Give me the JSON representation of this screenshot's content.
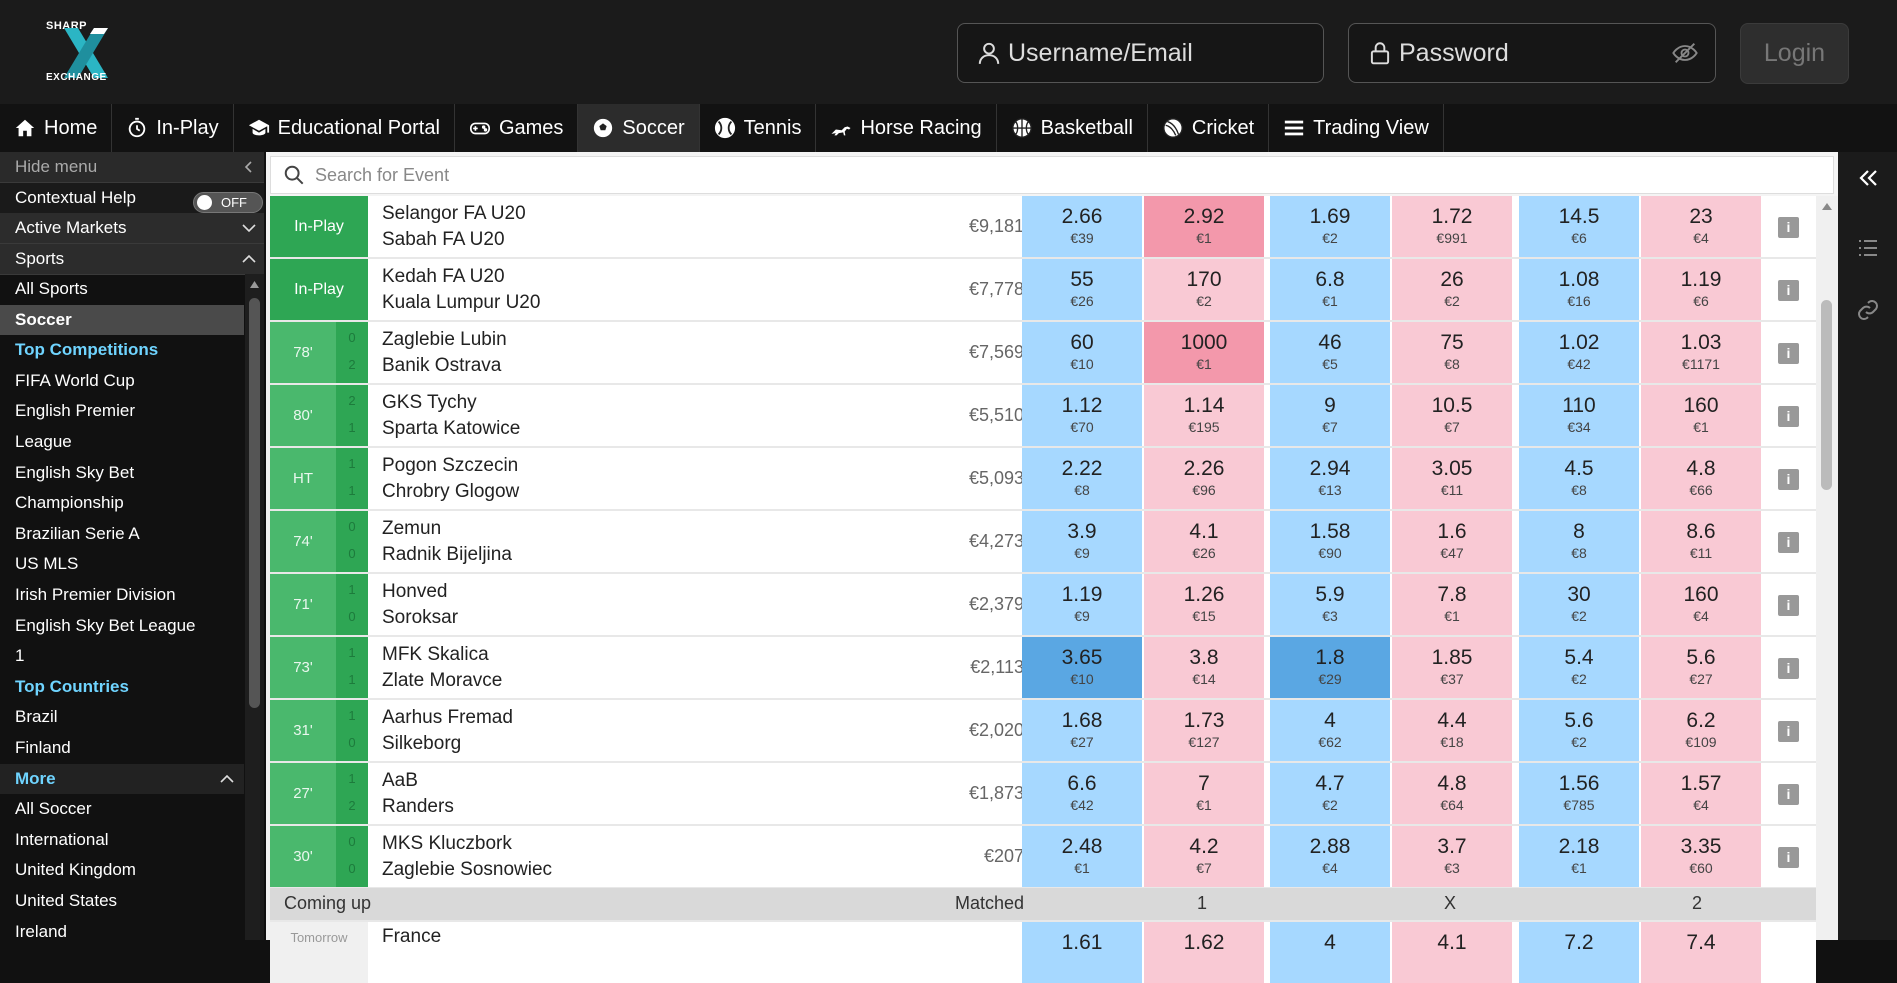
{
  "header": {
    "logo_top": "SHARP",
    "logo_bottom": "EXCHANGE",
    "username_placeholder": "Username/Email",
    "password_placeholder": "Password",
    "login_label": "Login"
  },
  "nav": [
    {
      "label": "Home",
      "icon": "home-icon"
    },
    {
      "label": "In-Play",
      "icon": "stopwatch-icon"
    },
    {
      "label": "Educational Portal",
      "icon": "graduation-cap-icon"
    },
    {
      "label": "Games",
      "icon": "gamepad-icon"
    },
    {
      "label": "Soccer",
      "icon": "soccer-ball-icon",
      "active": true
    },
    {
      "label": "Tennis",
      "icon": "tennis-ball-icon"
    },
    {
      "label": "Horse Racing",
      "icon": "horse-icon"
    },
    {
      "label": "Basketball",
      "icon": "basketball-icon"
    },
    {
      "label": "Cricket",
      "icon": "cricket-ball-icon"
    },
    {
      "label": "Trading View",
      "icon": "bars-icon"
    }
  ],
  "sidebar": {
    "hide_menu": "Hide menu",
    "contextual_help": "Contextual Help",
    "toggle_label": "OFF",
    "active_markets": "Active Markets",
    "sports": "Sports",
    "items": [
      {
        "label": "All Sports",
        "type": "item"
      },
      {
        "label": "Soccer",
        "type": "selected"
      },
      {
        "label": "Top Competitions",
        "type": "section"
      },
      {
        "label": "FIFA World Cup",
        "type": "item"
      },
      {
        "label": "English Premier",
        "type": "item"
      },
      {
        "label": "League",
        "type": "item"
      },
      {
        "label": "English Sky Bet",
        "type": "item"
      },
      {
        "label": "Championship",
        "type": "item"
      },
      {
        "label": "Brazilian Serie A",
        "type": "item"
      },
      {
        "label": "US MLS",
        "type": "item"
      },
      {
        "label": "Irish Premier Division",
        "type": "item"
      },
      {
        "label": "English Sky Bet League",
        "type": "item"
      },
      {
        "label": "1",
        "type": "item"
      },
      {
        "label": "Top Countries",
        "type": "section"
      },
      {
        "label": "Brazil",
        "type": "item"
      },
      {
        "label": "Finland",
        "type": "item"
      },
      {
        "label": "More",
        "type": "more"
      },
      {
        "label": "All Soccer",
        "type": "item"
      },
      {
        "label": "International",
        "type": "item"
      },
      {
        "label": "United Kingdom",
        "type": "item"
      },
      {
        "label": "United States",
        "type": "item"
      },
      {
        "label": "Ireland",
        "type": "item"
      }
    ]
  },
  "search": {
    "placeholder": "Search for Event"
  },
  "colors": {
    "back": "#a6d8ff",
    "back_active": "#5aa7e3",
    "lay": "#f9c9d4",
    "lay_active": "#f398ab",
    "inplay": "#2ea654"
  },
  "events": [
    {
      "status": "In-Play",
      "home": "Selangor FA U20",
      "away": "Sabah FA U20",
      "matched": "€9,181",
      "odds": [
        [
          "2.66",
          "€39"
        ],
        [
          "2.92",
          "€1"
        ],
        [
          "1.69",
          "€2"
        ],
        [
          "1.72",
          "€991"
        ],
        [
          "14.5",
          "€6"
        ],
        [
          "23",
          "€4"
        ]
      ],
      "hl": [
        1
      ]
    },
    {
      "status": "In-Play",
      "home": "Kedah FA U20",
      "away": "Kuala Lumpur U20",
      "matched": "€7,778",
      "odds": [
        [
          "55",
          "€26"
        ],
        [
          "170",
          "€2"
        ],
        [
          "6.8",
          "€1"
        ],
        [
          "26",
          "€2"
        ],
        [
          "1.08",
          "€16"
        ],
        [
          "1.19",
          "€6"
        ]
      ],
      "hl": []
    },
    {
      "status": "78'",
      "score": [
        "0",
        "2"
      ],
      "home": "Zaglebie Lubin",
      "away": "Banik Ostrava",
      "matched": "€7,569",
      "odds": [
        [
          "60",
          "€10"
        ],
        [
          "1000",
          "€1"
        ],
        [
          "46",
          "€5"
        ],
        [
          "75",
          "€8"
        ],
        [
          "1.02",
          "€42"
        ],
        [
          "1.03",
          "€1171"
        ]
      ],
      "hl": [
        1
      ]
    },
    {
      "status": "80'",
      "score": [
        "2",
        "1"
      ],
      "home": "GKS Tychy",
      "away": "Sparta Katowice",
      "matched": "€5,510",
      "odds": [
        [
          "1.12",
          "€70"
        ],
        [
          "1.14",
          "€195"
        ],
        [
          "9",
          "€7"
        ],
        [
          "10.5",
          "€7"
        ],
        [
          "110",
          "€34"
        ],
        [
          "160",
          "€1"
        ]
      ],
      "hl": []
    },
    {
      "status": "HT",
      "score": [
        "1",
        "1"
      ],
      "home": "Pogon Szczecin",
      "away": "Chrobry Glogow",
      "matched": "€5,093",
      "odds": [
        [
          "2.22",
          "€8"
        ],
        [
          "2.26",
          "€96"
        ],
        [
          "2.94",
          "€13"
        ],
        [
          "3.05",
          "€11"
        ],
        [
          "4.5",
          "€8"
        ],
        [
          "4.8",
          "€66"
        ]
      ],
      "hl": []
    },
    {
      "status": "74'",
      "score": [
        "0",
        "0"
      ],
      "home": "Zemun",
      "away": "Radnik Bijeljina",
      "matched": "€4,273",
      "odds": [
        [
          "3.9",
          "€9"
        ],
        [
          "4.1",
          "€26"
        ],
        [
          "1.58",
          "€90"
        ],
        [
          "1.6",
          "€47"
        ],
        [
          "8",
          "€8"
        ],
        [
          "8.6",
          "€11"
        ]
      ],
      "hl": []
    },
    {
      "status": "71'",
      "score": [
        "1",
        "0"
      ],
      "home": "Honved",
      "away": "Soroksar",
      "matched": "€2,379",
      "odds": [
        [
          "1.19",
          "€9"
        ],
        [
          "1.26",
          "€15"
        ],
        [
          "5.9",
          "€3"
        ],
        [
          "7.8",
          "€1"
        ],
        [
          "30",
          "€2"
        ],
        [
          "160",
          "€4"
        ]
      ],
      "hl": []
    },
    {
      "status": "73'",
      "score": [
        "1",
        "1"
      ],
      "home": "MFK Skalica",
      "away": "Zlate Moravce",
      "matched": "€2,113",
      "odds": [
        [
          "3.65",
          "€10"
        ],
        [
          "3.8",
          "€14"
        ],
        [
          "1.8",
          "€29"
        ],
        [
          "1.85",
          "€37"
        ],
        [
          "5.4",
          "€2"
        ],
        [
          "5.6",
          "€27"
        ]
      ],
      "hl": [
        0,
        2
      ]
    },
    {
      "status": "31'",
      "score": [
        "1",
        "0"
      ],
      "home": "Aarhus Fremad",
      "away": "Silkeborg",
      "matched": "€2,020",
      "odds": [
        [
          "1.68",
          "€27"
        ],
        [
          "1.73",
          "€127"
        ],
        [
          "4",
          "€62"
        ],
        [
          "4.4",
          "€18"
        ],
        [
          "5.6",
          "€2"
        ],
        [
          "6.2",
          "€109"
        ]
      ],
      "hl": []
    },
    {
      "status": "27'",
      "score": [
        "1",
        "2"
      ],
      "home": "AaB",
      "away": "Randers",
      "matched": "€1,873",
      "odds": [
        [
          "6.6",
          "€42"
        ],
        [
          "7",
          "€1"
        ],
        [
          "4.7",
          "€2"
        ],
        [
          "4.8",
          "€64"
        ],
        [
          "1.56",
          "€785"
        ],
        [
          "1.57",
          "€4"
        ]
      ],
      "hl": []
    },
    {
      "status": "30'",
      "score": [
        "0",
        "0"
      ],
      "home": "MKS Kluczbork",
      "away": "Zaglebie Sosnowiec",
      "matched": "€207",
      "odds": [
        [
          "2.48",
          "€1"
        ],
        [
          "4.2",
          "€7"
        ],
        [
          "2.88",
          "€4"
        ],
        [
          "3.7",
          "€3"
        ],
        [
          "2.18",
          "€1"
        ],
        [
          "3.35",
          "€60"
        ]
      ],
      "hl": []
    }
  ],
  "coming_up": {
    "title": "Coming up",
    "matched": "Matched",
    "c1": "1",
    "cx": "X",
    "c2": "2"
  },
  "upcoming": {
    "status": "Tomorrow",
    "home": "France",
    "odds": [
      "1.61",
      "1.62",
      "4",
      "4.1",
      "7.2",
      "7.4"
    ]
  }
}
